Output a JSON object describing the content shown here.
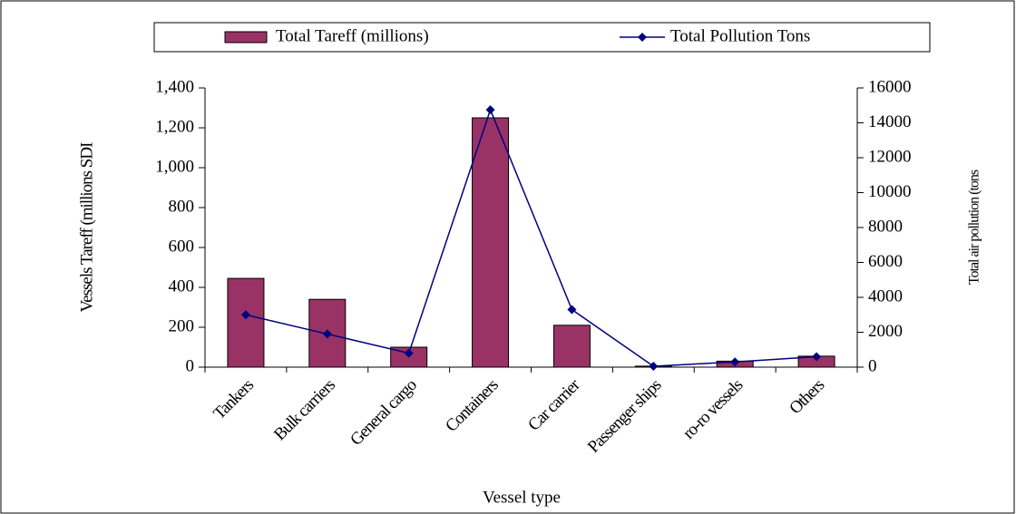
{
  "chart_data": {
    "type": "bar_line",
    "x_label": "Vessel type",
    "y_label": "Vessels Tareff (millions SDI",
    "y2_label": "Total air pollution (tons",
    "categories": [
      "Tankers",
      "Bulk carriers",
      "General cargo",
      "Containers",
      "Car carrier",
      "Passenger ships",
      "ro-ro vessels",
      "Others"
    ],
    "series": [
      {
        "name": "Total Tareff (millions)",
        "type": "bar",
        "color": "#993366",
        "values": [
          445,
          340,
          100,
          1250,
          210,
          5,
          30,
          55
        ]
      },
      {
        "name": "Total Pollution Tons",
        "type": "line",
        "axis": "y2",
        "color": "#000080",
        "values": [
          3000,
          1900,
          800,
          14750,
          3300,
          50,
          300,
          600
        ]
      }
    ],
    "ylim": [
      0,
      1400
    ],
    "yticks": [
      0,
      200,
      400,
      600,
      800,
      {
        "value": 1000,
        "label": "1,000"
      },
      {
        "value": 1200,
        "label": "1,200"
      },
      {
        "value": 1400,
        "label": "1,400"
      }
    ],
    "y2lim": [
      0,
      16000
    ],
    "y2ticks": [
      0,
      2000,
      4000,
      6000,
      8000,
      10000,
      12000,
      14000,
      16000
    ],
    "legend": "top"
  }
}
